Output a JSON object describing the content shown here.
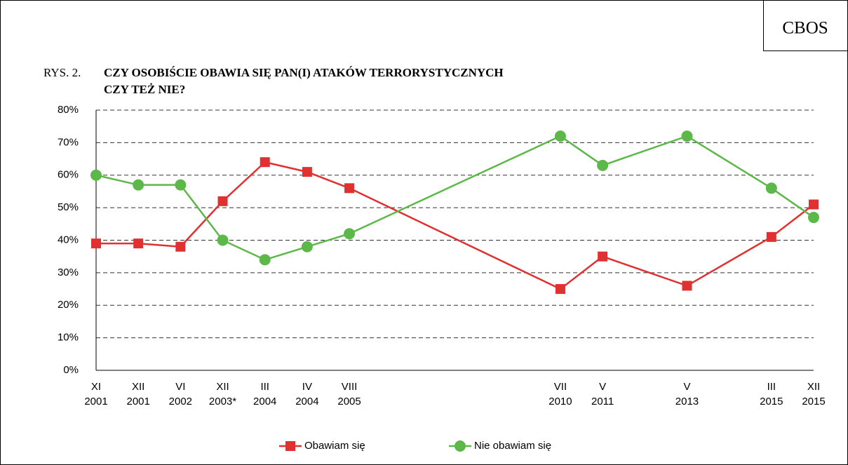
{
  "chart_data": {
    "type": "line",
    "brand": "CBOS",
    "figure_label": "RYS. 2.",
    "title_lines": [
      "CZY OSOBIŚCIE OBAWIA SIĘ PAN(I) ATAKÓW TERRORYSTYCZNYCH",
      "CZY TEŻ NIE?"
    ],
    "categories": [
      [
        "XI",
        "2001"
      ],
      [
        "XII",
        "2001"
      ],
      [
        "VI",
        "2002"
      ],
      [
        "XII",
        "2003*"
      ],
      [
        "III",
        "2004"
      ],
      [
        "IV",
        "2004"
      ],
      [
        "VIII",
        "2005"
      ],
      [
        "VII",
        "2010"
      ],
      [
        "V",
        "2011"
      ],
      [
        "V",
        "2013"
      ],
      [
        "III",
        "2015"
      ],
      [
        "XII",
        "2015"
      ]
    ],
    "series": [
      {
        "name": "Obawiam się",
        "color": "#e03030",
        "marker": "square",
        "values": [
          39,
          39,
          38,
          52,
          64,
          61,
          56,
          25,
          35,
          26,
          41,
          51
        ]
      },
      {
        "name": "Nie obawiam się",
        "color": "#5cb848",
        "marker": "circle",
        "values": [
          60,
          57,
          57,
          40,
          34,
          38,
          42,
          72,
          63,
          72,
          56,
          47
        ]
      }
    ],
    "ylim": [
      0,
      80
    ],
    "yticks": [
      {
        "value": 0,
        "label": "0%"
      },
      {
        "value": 10,
        "label": "10%"
      },
      {
        "value": 20,
        "label": "20%"
      },
      {
        "value": 30,
        "label": "30%"
      },
      {
        "value": 40,
        "label": "40%"
      },
      {
        "value": 50,
        "label": "50%"
      },
      {
        "value": 60,
        "label": "60%"
      },
      {
        "value": 70,
        "label": "70%"
      },
      {
        "value": 80,
        "label": "80%"
      }
    ],
    "grid": true,
    "legend": "bottom"
  }
}
